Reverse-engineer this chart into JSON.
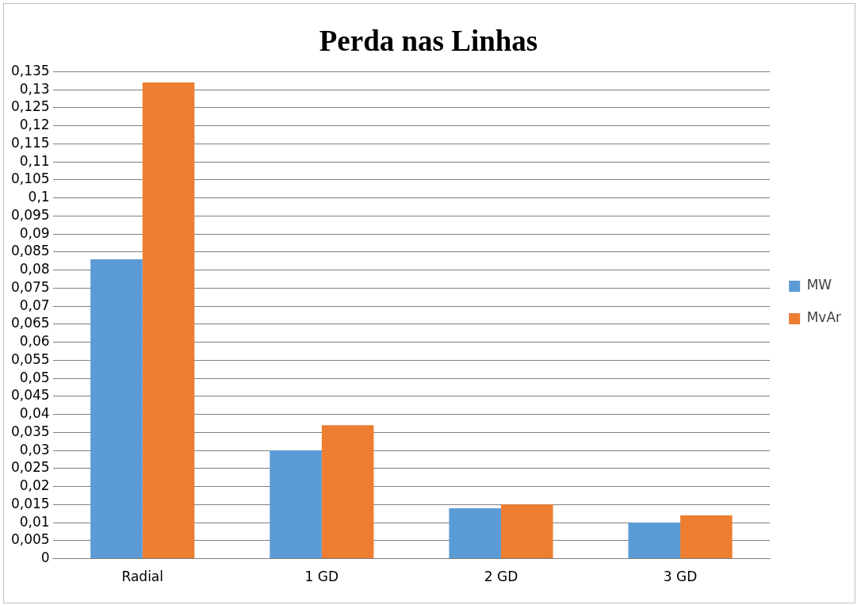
{
  "chart_data": {
    "type": "bar",
    "title": "Perda nas Linhas",
    "categories": [
      "Radial",
      "1 GD",
      "2 GD",
      "3 GD"
    ],
    "series": [
      {
        "name": "MW",
        "color": "#5b9bd5",
        "values": [
          0.083,
          0.03,
          0.014,
          0.01
        ]
      },
      {
        "name": "MvAr",
        "color": "#ed7d31",
        "values": [
          0.132,
          0.037,
          0.015,
          0.012
        ]
      }
    ],
    "ylim": [
      0,
      0.135
    ],
    "yticks": [
      {
        "value": 0,
        "label": "0"
      },
      {
        "value": 0.005,
        "label": "0,005"
      },
      {
        "value": 0.01,
        "label": "0,01"
      },
      {
        "value": 0.015,
        "label": "0,015"
      },
      {
        "value": 0.02,
        "label": "0,02"
      },
      {
        "value": 0.025,
        "label": "0,025"
      },
      {
        "value": 0.03,
        "label": "0,03"
      },
      {
        "value": 0.035,
        "label": "0,035"
      },
      {
        "value": 0.04,
        "label": "0,04"
      },
      {
        "value": 0.045,
        "label": "0,045"
      },
      {
        "value": 0.05,
        "label": "0,05"
      },
      {
        "value": 0.055,
        "label": "0,055"
      },
      {
        "value": 0.06,
        "label": "0,06"
      },
      {
        "value": 0.065,
        "label": "0,065"
      },
      {
        "value": 0.07,
        "label": "0,07"
      },
      {
        "value": 0.075,
        "label": "0,075"
      },
      {
        "value": 0.08,
        "label": "0,08"
      },
      {
        "value": 0.085,
        "label": "0,085"
      },
      {
        "value": 0.09,
        "label": "0,09"
      },
      {
        "value": 0.095,
        "label": "0,095"
      },
      {
        "value": 0.1,
        "label": "0,1"
      },
      {
        "value": 0.105,
        "label": "0,105"
      },
      {
        "value": 0.11,
        "label": "0,11"
      },
      {
        "value": 0.115,
        "label": "0,115"
      },
      {
        "value": 0.12,
        "label": "0,12"
      },
      {
        "value": 0.125,
        "label": "0,125"
      },
      {
        "value": 0.13,
        "label": "0,13"
      },
      {
        "value": 0.135,
        "label": "0,135"
      }
    ],
    "grid": "y",
    "legend": "right"
  }
}
